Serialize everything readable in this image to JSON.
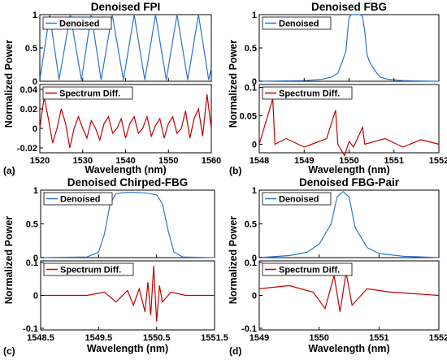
{
  "chart_data": [
    {
      "type": "line",
      "panel_label": "(a)",
      "title": "Denoised FPI",
      "ylabel": "Normalized Power",
      "xlabel": "Wavelength (nm)",
      "xlim": [
        1520,
        1560
      ],
      "x_ticks": [
        "1520",
        "1530",
        "1540",
        "1550",
        "1560"
      ],
      "top": {
        "series": [
          {
            "name": "Denoised",
            "color": "#2e75c7",
            "values": [
              [
                1520,
                0.02
              ],
              [
                1522.3,
                1.0
              ],
              [
                1524.5,
                0.02
              ],
              [
                1527.1,
                1.0
              ],
              [
                1529.7,
                0.02
              ],
              [
                1532.0,
                1.0
              ],
              [
                1534.3,
                0.02
              ],
              [
                1536.9,
                1.0
              ],
              [
                1539.5,
                0.02
              ],
              [
                1542.0,
                1.0
              ],
              [
                1544.5,
                0.02
              ],
              [
                1547.0,
                1.0
              ],
              [
                1549.5,
                0.02
              ],
              [
                1552.0,
                1.0
              ],
              [
                1554.5,
                0.02
              ],
              [
                1557.0,
                1.0
              ],
              [
                1559.4,
                0.02
              ],
              [
                1560,
                0.2
              ]
            ]
          }
        ],
        "ylim": [
          0,
          1
        ],
        "y_ticks": [
          "0",
          "0.5",
          "1"
        ]
      },
      "bottom": {
        "series": [
          {
            "name": "Spectrum Diff.",
            "color": "#c00000",
            "values": [
              [
                1520,
                0.0
              ],
              [
                1521,
                0.032
              ],
              [
                1522,
                0.01
              ],
              [
                1523,
                -0.015
              ],
              [
                1524,
                0.0
              ],
              [
                1525,
                0.02
              ],
              [
                1526,
                0.005
              ],
              [
                1527,
                -0.02
              ],
              [
                1528,
                0.0
              ],
              [
                1529,
                0.012
              ],
              [
                1530,
                0.0
              ],
              [
                1531,
                -0.01
              ],
              [
                1532,
                0.008
              ],
              [
                1533,
                0.0
              ],
              [
                1534,
                -0.012
              ],
              [
                1535,
                0.005
              ],
              [
                1536,
                0.012
              ],
              [
                1537,
                -0.005
              ],
              [
                1538,
                0.0
              ],
              [
                1539,
                0.01
              ],
              [
                1540,
                -0.01
              ],
              [
                1541,
                0.005
              ],
              [
                1542,
                0.012
              ],
              [
                1543,
                -0.005
              ],
              [
                1544,
                0.0
              ],
              [
                1545,
                0.012
              ],
              [
                1546,
                -0.008
              ],
              [
                1547,
                0.003
              ],
              [
                1548,
                0.01
              ],
              [
                1549,
                -0.01
              ],
              [
                1550,
                0.005
              ],
              [
                1551,
                0.012
              ],
              [
                1552,
                -0.005
              ],
              [
                1553,
                0.0
              ],
              [
                1554,
                0.018
              ],
              [
                1555,
                -0.01
              ],
              [
                1556,
                0.01
              ],
              [
                1557,
                0.02
              ],
              [
                1558,
                -0.008
              ],
              [
                1559,
                0.035
              ],
              [
                1560,
                0.0
              ]
            ]
          }
        ],
        "ylim": [
          -0.025,
          0.045
        ],
        "y_ticks": [
          "-0.02",
          "0",
          "0.02",
          "0.04"
        ]
      }
    },
    {
      "type": "line",
      "panel_label": "(b)",
      "title": "Denoised FBG",
      "ylabel": "Normalized Power",
      "xlabel": "Wavelength (nm)",
      "xlim": [
        1548,
        1552
      ],
      "x_ticks": [
        "1548",
        "1549",
        "1550",
        "1551",
        "1552"
      ],
      "top": {
        "series": [
          {
            "name": "Denoised",
            "color": "#2e75c7",
            "values": [
              [
                1548,
                0.0
              ],
              [
                1549.0,
                0.01
              ],
              [
                1549.4,
                0.03
              ],
              [
                1549.6,
                0.06
              ],
              [
                1549.75,
                0.12
              ],
              [
                1549.85,
                0.3
              ],
              [
                1549.93,
                0.45
              ],
              [
                1549.97,
                0.75
              ],
              [
                1550.0,
                0.95
              ],
              [
                1550.05,
                1.0
              ],
              [
                1550.25,
                1.0
              ],
              [
                1550.3,
                0.97
              ],
              [
                1550.35,
                0.75
              ],
              [
                1550.4,
                0.4
              ],
              [
                1550.45,
                0.3
              ],
              [
                1550.52,
                0.22
              ],
              [
                1550.6,
                0.14
              ],
              [
                1550.7,
                0.06
              ],
              [
                1550.85,
                0.03
              ],
              [
                1551.2,
                0.01
              ],
              [
                1552,
                0.0
              ]
            ]
          }
        ],
        "ylim": [
          0,
          1
        ],
        "y_ticks": [
          "0",
          "0.5",
          "1"
        ]
      },
      "bottom": {
        "series": [
          {
            "name": "Spectrum Diff.",
            "color": "#c00000",
            "values": [
              [
                1548,
                0.0
              ],
              [
                1548.3,
                0.08
              ],
              [
                1548.35,
                0.0
              ],
              [
                1548.6,
                0.01
              ],
              [
                1549,
                -0.005
              ],
              [
                1549.5,
                0.01
              ],
              [
                1549.7,
                0.06
              ],
              [
                1549.75,
                0.0
              ],
              [
                1549.9,
                -0.02
              ],
              [
                1550.0,
                0.005
              ],
              [
                1550.1,
                -0.005
              ],
              [
                1550.3,
                0.03
              ],
              [
                1550.35,
                0.0
              ],
              [
                1550.8,
                0.01
              ],
              [
                1551.2,
                -0.005
              ],
              [
                1551.6,
                0.008
              ],
              [
                1552,
                0.0
              ]
            ]
          }
        ],
        "ylim": [
          -0.015,
          0.105
        ],
        "y_ticks": [
          "0",
          "0.05",
          "0.1"
        ]
      }
    },
    {
      "type": "line",
      "panel_label": "(c)",
      "title": "Denoised Chirped-FBG",
      "ylabel": "Normalized Power",
      "xlabel": "Wavelength (nm)",
      "xlim": [
        1548.5,
        1551.5
      ],
      "x_ticks": [
        "1548.5",
        "1549.5",
        "1550.5",
        "1551.5"
      ],
      "top": {
        "series": [
          {
            "name": "Denoised",
            "color": "#2e75c7",
            "values": [
              [
                1548.5,
                0.0
              ],
              [
                1549.3,
                0.01
              ],
              [
                1549.5,
                0.08
              ],
              [
                1549.6,
                0.35
              ],
              [
                1549.7,
                0.8
              ],
              [
                1549.8,
                0.95
              ],
              [
                1550.0,
                0.97
              ],
              [
                1550.3,
                0.96
              ],
              [
                1550.5,
                0.93
              ],
              [
                1550.6,
                0.8
              ],
              [
                1550.7,
                0.4
              ],
              [
                1550.8,
                0.08
              ],
              [
                1550.95,
                0.01
              ],
              [
                1551.5,
                0.0
              ]
            ]
          }
        ],
        "ylim": [
          0,
          1
        ],
        "y_ticks": [
          "0",
          "0.5",
          "1"
        ]
      },
      "bottom": {
        "series": [
          {
            "name": "Spectrum Diff.",
            "color": "#c00000",
            "values": [
              [
                1548.5,
                0.0
              ],
              [
                1549.3,
                0.0
              ],
              [
                1549.6,
                0.01
              ],
              [
                1549.8,
                -0.02
              ],
              [
                1550.0,
                0.015
              ],
              [
                1550.1,
                -0.03
              ],
              [
                1550.2,
                0.02
              ],
              [
                1550.3,
                -0.05
              ],
              [
                1550.35,
                0.04
              ],
              [
                1550.4,
                -0.06
              ],
              [
                1550.45,
                0.09
              ],
              [
                1550.5,
                -0.08
              ],
              [
                1550.55,
                0.03
              ],
              [
                1550.6,
                -0.02
              ],
              [
                1550.75,
                0.01
              ],
              [
                1551.0,
                0.0
              ],
              [
                1551.5,
                0.0
              ]
            ]
          }
        ],
        "ylim": [
          -0.105,
          0.105
        ],
        "y_ticks": [
          "-0.1",
          "0",
          "0.1"
        ]
      }
    },
    {
      "type": "line",
      "panel_label": "(d)",
      "title": "Denoised FBG-Pair",
      "ylabel": "Normalized Power",
      "xlabel": "Wavelength (nm)",
      "xlim": [
        1549,
        1552
      ],
      "x_ticks": [
        "1549",
        "1550",
        "1551",
        "1552"
      ],
      "top": {
        "series": [
          {
            "name": "Denoised",
            "color": "#2e75c7",
            "values": [
              [
                1549,
                0.0
              ],
              [
                1549.5,
                0.03
              ],
              [
                1549.8,
                0.08
              ],
              [
                1550.0,
                0.2
              ],
              [
                1550.2,
                0.5
              ],
              [
                1550.3,
                0.9
              ],
              [
                1550.4,
                0.98
              ],
              [
                1550.5,
                0.9
              ],
              [
                1550.6,
                0.45
              ],
              [
                1550.8,
                0.15
              ],
              [
                1551.0,
                0.06
              ],
              [
                1551.4,
                0.02
              ],
              [
                1552,
                0.0
              ]
            ]
          }
        ],
        "ylim": [
          0,
          1
        ],
        "y_ticks": [
          "0",
          "0.5",
          "1"
        ]
      },
      "bottom": {
        "series": [
          {
            "name": "Spectrum Diff.",
            "color": "#c00000",
            "values": [
              [
                1549,
                0.02
              ],
              [
                1549.5,
                0.03
              ],
              [
                1549.9,
                0.01
              ],
              [
                1550.1,
                -0.04
              ],
              [
                1550.25,
                0.06
              ],
              [
                1550.35,
                -0.05
              ],
              [
                1550.45,
                0.07
              ],
              [
                1550.55,
                -0.03
              ],
              [
                1550.8,
                0.02
              ],
              [
                1551.2,
                0.01
              ],
              [
                1552,
                0.0
              ]
            ]
          }
        ],
        "ylim": [
          -0.105,
          0.105
        ],
        "y_ticks": [
          "-0.1",
          "0",
          "0.1"
        ]
      }
    }
  ]
}
